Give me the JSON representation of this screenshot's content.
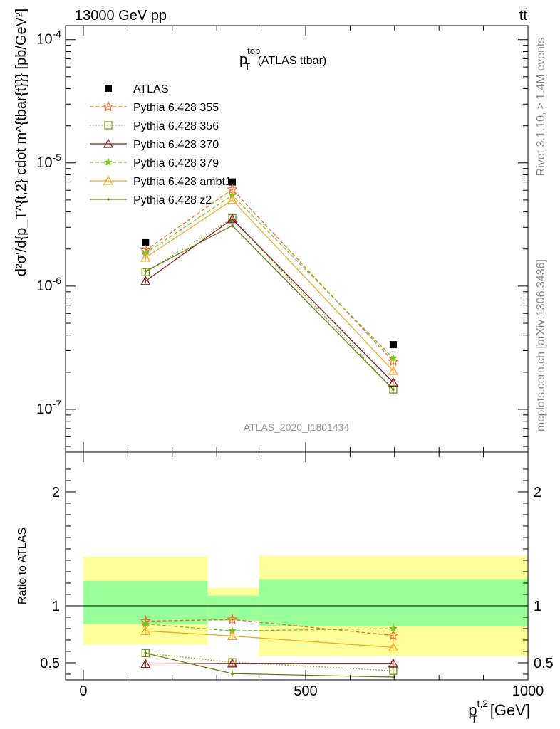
{
  "header": {
    "left": "13000 GeV pp",
    "right": "tt̄"
  },
  "plot_title": {
    "main": "p",
    "sup": "top",
    "sub": "T",
    "suffix": " (ATLAS ttbar)"
  },
  "watermark": "ATLAS_2020_I1801434",
  "side_text": {
    "rivet": "Rivet 3.1.10, ≥ 1.4M events",
    "mcplots": "mcplots.cern.ch [arXiv:1306.3436]"
  },
  "ylabel_main": "d²σ'/d{p_T^{t,2} cdot m^{tbar{t}}} [pb/GeV²]",
  "xlabel": "p_T^{t,2} [GeV]",
  "ylabel_ratio": "Ratio to ATLAS",
  "chart_data": [
    {
      "type": "line",
      "panel": "main",
      "yscale": "log",
      "xlim": [
        -40,
        1000
      ],
      "ylim": [
        4.5e-08,
        0.00013
      ],
      "xticks": [
        0,
        500,
        1000
      ],
      "yticks_labels": [
        "10^-7",
        "10^-6",
        "10^-5",
        "10^-4"
      ],
      "x": [
        140,
        335,
        697
      ],
      "legend_position": "top-left",
      "series": [
        {
          "name": "ATLAS",
          "style": "data",
          "marker": "square",
          "color": "#000000",
          "values": [
            2.25e-06,
            7e-06,
            3.35e-07
          ],
          "errors": [
            0.05,
            0.05,
            0.05
          ]
        },
        {
          "name": "Pythia 6.428 355",
          "marker": "star-open",
          "dash": "5,3",
          "color": "#f26522",
          "values": [
            1.95e-06,
            6.1e-06,
            2.45e-07
          ],
          "errors": [
            0.05,
            0.04,
            0.08
          ]
        },
        {
          "name": "Pythia 6.428 356",
          "marker": "square-open",
          "dash": "1.5,2.5",
          "color": "#7a9a1a",
          "values": [
            1.3e-06,
            3.55e-06,
            1.45e-07
          ],
          "errors": [
            0.05,
            0.04,
            0.08
          ]
        },
        {
          "name": "Pythia 6.428 370",
          "marker": "triangle-open",
          "dash": "",
          "color": "#8b1a1a",
          "values": [
            1.1e-06,
            3.5e-06,
            1.65e-07
          ],
          "errors": [
            0.05,
            0.04,
            0.08
          ]
        },
        {
          "name": "Pythia 6.428 379",
          "marker": "star-filled",
          "dash": "5,3",
          "color": "#77c01a",
          "values": [
            1.85e-06,
            5.45e-06,
            2.6e-07
          ],
          "errors": [
            0.05,
            0.04,
            0.08
          ]
        },
        {
          "name": "Pythia 6.428 ambt1",
          "marker": "triangle-open",
          "dash": "",
          "color": "#f5a623",
          "values": [
            1.7e-06,
            5e-06,
            2.05e-07
          ],
          "errors": [
            0.05,
            0.04,
            0.08
          ]
        },
        {
          "name": "Pythia 6.428 z2",
          "marker": "dot",
          "dash": "",
          "color": "#6b7a12",
          "values": [
            1.32e-06,
            3.1e-06,
            1.45e-07
          ],
          "errors": [
            0.05,
            0.04,
            0.08
          ]
        }
      ]
    },
    {
      "type": "line",
      "panel": "ratio",
      "xlim": [
        -40,
        1000
      ],
      "ylim": [
        0.35,
        2.35
      ],
      "yticks": [
        0.5,
        1,
        2
      ],
      "yticks_labels": [
        "0.5",
        "1",
        "2"
      ],
      "x": [
        140,
        335,
        697
      ],
      "uncertainty_bands": [
        {
          "x0": 0,
          "x1": 280,
          "outer": [
            0.66,
            1.43
          ],
          "inner": [
            0.84,
            1.22
          ]
        },
        {
          "x0": 280,
          "x1": 395,
          "outer": [
            0.87,
            1.16
          ],
          "inner": [
            0.87,
            1.09
          ]
        },
        {
          "x0": 395,
          "x1": 1000,
          "outer": [
            0.56,
            1.44
          ],
          "inner": [
            0.82,
            1.23
          ]
        }
      ],
      "band_colors": {
        "outer": "#ffff99",
        "inner": "#99ff99"
      },
      "series": [
        {
          "name": "Pythia 6.428 355",
          "values": [
            0.865,
            0.88,
            0.74
          ],
          "errors": [
            0.05,
            0.04,
            0.05
          ]
        },
        {
          "name": "Pythia 6.428 356",
          "values": [
            0.585,
            0.505,
            0.43
          ],
          "errors": [
            0.03,
            0.03,
            0.03
          ]
        },
        {
          "name": "Pythia 6.428 370",
          "values": [
            0.49,
            0.495,
            0.495
          ],
          "errors": [
            0.03,
            0.03,
            0.04
          ]
        },
        {
          "name": "Pythia 6.428 379",
          "values": [
            0.84,
            0.78,
            0.8
          ],
          "errors": [
            0.04,
            0.03,
            0.05
          ]
        },
        {
          "name": "Pythia 6.428 ambt1",
          "values": [
            0.78,
            0.735,
            0.635
          ],
          "errors": [
            0.04,
            0.03,
            0.06
          ]
        },
        {
          "name": "Pythia 6.428 z2",
          "values": [
            0.585,
            0.405,
            0.375
          ],
          "errors": [
            0.03,
            0.03,
            0.03
          ]
        }
      ]
    }
  ]
}
